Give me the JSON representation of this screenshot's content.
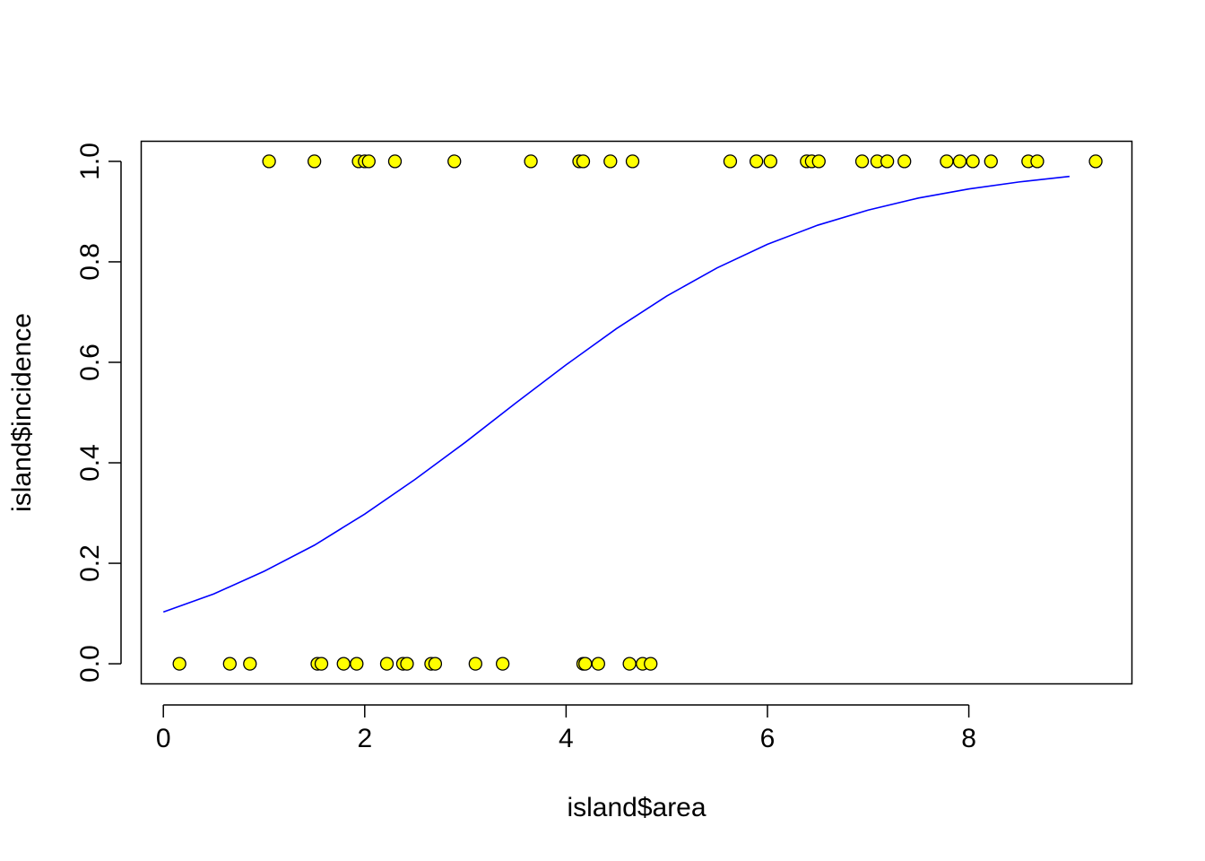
{
  "chart_data": {
    "type": "scatter",
    "title": "",
    "xlabel": "island$area",
    "ylabel": "island$incidence",
    "xlim": [
      -0.22,
      9.62
    ],
    "ylim": [
      -0.04,
      1.04
    ],
    "x_ticks": [
      0,
      2,
      4,
      6,
      8
    ],
    "x_tick_labels": [
      "0",
      "2",
      "4",
      "6",
      "8"
    ],
    "y_ticks": [
      0.0,
      0.2,
      0.4,
      0.6,
      0.8,
      1.0
    ],
    "y_tick_labels": [
      "0.0",
      "0.2",
      "0.4",
      "0.6",
      "0.8",
      "1.0"
    ],
    "grid": false,
    "legend": "none",
    "colors": {
      "point_fill": "#ffff00",
      "point_stroke": "#000000",
      "curve": "#0000ff",
      "axis": "#000000"
    },
    "series": [
      {
        "type": "scatter",
        "points": [
          {
            "x": 1.05,
            "y": 1
          },
          {
            "x": 1.5,
            "y": 1
          },
          {
            "x": 1.94,
            "y": 1
          },
          {
            "x": 2.0,
            "y": 1
          },
          {
            "x": 2.04,
            "y": 1
          },
          {
            "x": 2.3,
            "y": 1
          },
          {
            "x": 2.89,
            "y": 1
          },
          {
            "x": 3.65,
            "y": 1
          },
          {
            "x": 4.13,
            "y": 1
          },
          {
            "x": 4.17,
            "y": 1
          },
          {
            "x": 4.44,
            "y": 1
          },
          {
            "x": 4.66,
            "y": 1
          },
          {
            "x": 5.63,
            "y": 1
          },
          {
            "x": 5.89,
            "y": 1
          },
          {
            "x": 6.03,
            "y": 1
          },
          {
            "x": 6.39,
            "y": 1
          },
          {
            "x": 6.44,
            "y": 1
          },
          {
            "x": 6.51,
            "y": 1
          },
          {
            "x": 6.94,
            "y": 1
          },
          {
            "x": 7.09,
            "y": 1
          },
          {
            "x": 7.19,
            "y": 1
          },
          {
            "x": 7.36,
            "y": 1
          },
          {
            "x": 7.78,
            "y": 1
          },
          {
            "x": 7.91,
            "y": 1
          },
          {
            "x": 8.04,
            "y": 1
          },
          {
            "x": 8.22,
            "y": 1
          },
          {
            "x": 8.59,
            "y": 1
          },
          {
            "x": 8.68,
            "y": 1
          },
          {
            "x": 9.26,
            "y": 1
          },
          {
            "x": 0.16,
            "y": 0
          },
          {
            "x": 0.66,
            "y": 0
          },
          {
            "x": 0.86,
            "y": 0
          },
          {
            "x": 1.53,
            "y": 0
          },
          {
            "x": 1.57,
            "y": 0
          },
          {
            "x": 1.79,
            "y": 0
          },
          {
            "x": 1.92,
            "y": 0
          },
          {
            "x": 2.22,
            "y": 0
          },
          {
            "x": 2.38,
            "y": 0
          },
          {
            "x": 2.42,
            "y": 0
          },
          {
            "x": 2.66,
            "y": 0
          },
          {
            "x": 2.7,
            "y": 0
          },
          {
            "x": 3.1,
            "y": 0
          },
          {
            "x": 3.37,
            "y": 0
          },
          {
            "x": 4.17,
            "y": 0
          },
          {
            "x": 4.19,
            "y": 0
          },
          {
            "x": 4.32,
            "y": 0
          },
          {
            "x": 4.63,
            "y": 0
          },
          {
            "x": 4.76,
            "y": 0
          },
          {
            "x": 4.84,
            "y": 0
          }
        ]
      },
      {
        "type": "line",
        "x": [
          0,
          0.5,
          1,
          1.5,
          2,
          2.5,
          3,
          3.5,
          4,
          4.5,
          5,
          5.5,
          6,
          6.5,
          7,
          7.5,
          8,
          8.5,
          9
        ],
        "y": [
          0.103,
          0.139,
          0.184,
          0.236,
          0.298,
          0.367,
          0.441,
          0.519,
          0.595,
          0.667,
          0.732,
          0.788,
          0.835,
          0.873,
          0.903,
          0.927,
          0.945,
          0.959,
          0.97
        ]
      }
    ]
  }
}
